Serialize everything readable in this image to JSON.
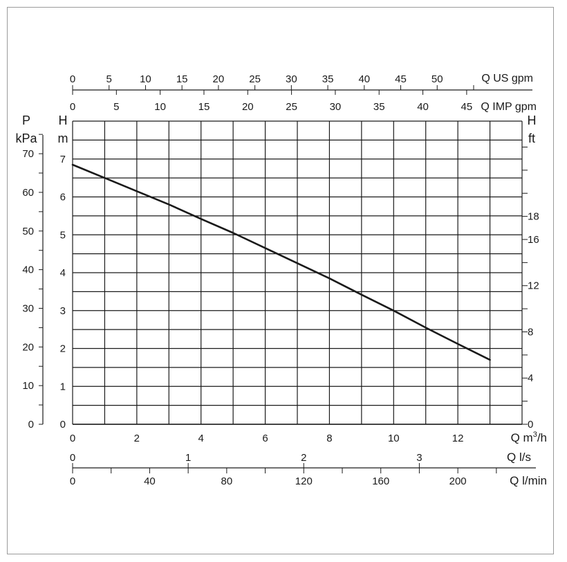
{
  "chart_data": {
    "type": "line",
    "series": [
      {
        "x": [
          0,
          1,
          2,
          3,
          4,
          5,
          6,
          7,
          8,
          9,
          10,
          11,
          12,
          13
        ],
        "values": [
          6.85,
          6.5,
          6.15,
          5.8,
          5.42,
          5.05,
          4.65,
          4.25,
          3.85,
          3.42,
          3.0,
          2.55,
          2.12,
          1.7
        ]
      }
    ],
    "xlim": [
      0,
      14
    ],
    "ylim": [
      0,
      8
    ],
    "grid": true,
    "axes": {
      "primary_x": {
        "label": "Q m³/h",
        "label_base": "Q m",
        "label_sup": "3",
        "label_tail": "/h",
        "ticks": [
          "0",
          "2",
          "4",
          "6",
          "8",
          "10",
          "12"
        ]
      },
      "ls": {
        "label": "Q l/s",
        "ticks": [
          "0",
          "1",
          "2",
          "3"
        ]
      },
      "lmin": {
        "label": "Q l/min",
        "ticks": [
          "0",
          "40",
          "80",
          "120",
          "160",
          "200"
        ]
      },
      "us_gpm": {
        "label": "Q US gpm",
        "ticks": [
          "0",
          "5",
          "10",
          "15",
          "20",
          "25",
          "30",
          "35",
          "40",
          "45",
          "50"
        ]
      },
      "imp_gpm": {
        "label": "Q IMP gpm",
        "ticks": [
          "0",
          "5",
          "10",
          "15",
          "20",
          "25",
          "30",
          "35",
          "40",
          "45"
        ]
      },
      "head_m": {
        "label_top": "H",
        "label_bottom": "m",
        "ticks": [
          "0",
          "1",
          "2",
          "3",
          "4",
          "5",
          "6",
          "7"
        ]
      },
      "pressure_kpa": {
        "label_top": "P",
        "label_bottom": "kPa",
        "ticks": [
          "0",
          "10",
          "20",
          "30",
          "40",
          "50",
          "60",
          "70"
        ]
      },
      "head_ft": {
        "label_top": "H",
        "label_bottom": "ft",
        "ticks": [
          "0",
          "4",
          "8",
          "12",
          "16",
          "18"
        ]
      }
    },
    "colors": {
      "curve": "#1a1a1a",
      "grid": "#1a1a1a",
      "frame": "#9a9a9a"
    }
  }
}
